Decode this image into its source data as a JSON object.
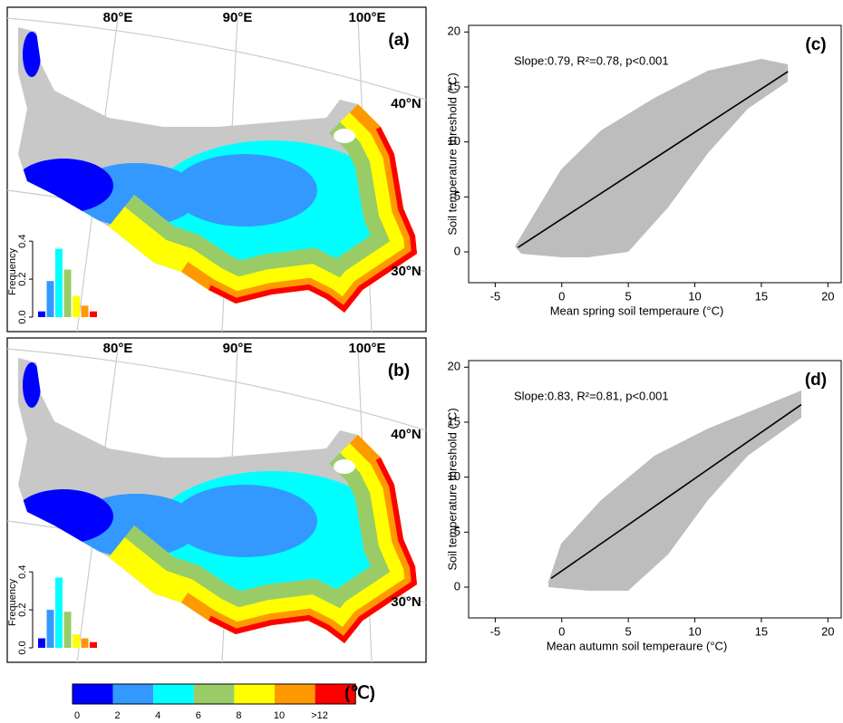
{
  "chart_data": [
    {
      "type": "bar",
      "title": "(a)",
      "y_label": "Frequency",
      "map_labels": [
        "80°E",
        "90°E",
        "100°E",
        "40°N",
        "30°N"
      ],
      "values": [
        0.03,
        0.19,
        0.36,
        0.25,
        0.11,
        0.06,
        0.03
      ],
      "colors": [
        "#0000ff",
        "#3399ff",
        "#00ffff",
        "#99cc66",
        "#ffff00",
        "#ff9900",
        "#ff0000"
      ],
      "ylim": [
        0,
        0.42
      ],
      "yticks": [
        {
          "value": 0,
          "label": "0.0"
        },
        {
          "value": 0.2,
          "label": "0.2"
        },
        {
          "value": 0.4,
          "label": "0.4"
        }
      ]
    },
    {
      "type": "bar",
      "title": "(b)",
      "y_label": "Frequency",
      "map_labels": [
        "80°E",
        "90°E",
        "100°E",
        "40°N",
        "30°N"
      ],
      "values": [
        0.05,
        0.2,
        0.37,
        0.19,
        0.07,
        0.05,
        0.03
      ],
      "colors": [
        "#0000ff",
        "#3399ff",
        "#00ffff",
        "#99cc66",
        "#ffff00",
        "#ff9900",
        "#ff0000"
      ],
      "ylim": [
        0,
        0.42
      ],
      "yticks": [
        {
          "value": 0,
          "label": "0.0"
        },
        {
          "value": 0.2,
          "label": "0.2"
        },
        {
          "value": 0.4,
          "label": "0.4"
        }
      ]
    },
    {
      "type": "line",
      "title": "(c)",
      "annotation": "Slope:0.79, R²=0.78, p<0.001",
      "x_label": "Mean spring soil temperaure (°C)",
      "y_label": "Soil temperature threshold (°C)",
      "x": [
        -3.3,
        17
      ],
      "series": [
        {
          "color": "#000000",
          "values": [
            0.4,
            16.4
          ]
        }
      ],
      "xlim": [
        -7,
        21
      ],
      "ylim": [
        -2.8,
        20.6
      ],
      "xticks": [
        -5,
        0,
        5,
        10,
        15,
        20
      ],
      "yticks": [
        0,
        5,
        10,
        15,
        20
      ]
    },
    {
      "type": "line",
      "title": "(d)",
      "annotation": "Slope:0.83, R²=0.81, p<0.001",
      "x_label": "Mean autumn soil temperaure (°C)",
      "y_label": "Soil temperature threshold (°C)",
      "x": [
        -0.8,
        18
      ],
      "series": [
        {
          "color": "#000000",
          "values": [
            0.8,
            16.6
          ]
        }
      ],
      "xlim": [
        -7,
        21
      ],
      "ylim": [
        -2.8,
        20.6
      ],
      "xticks": [
        -5,
        0,
        5,
        10,
        15,
        20
      ],
      "yticks": [
        0,
        5,
        10,
        15,
        20
      ]
    }
  ],
  "colorbar": {
    "labels": [
      "0",
      "2",
      "4",
      "6",
      "8",
      "10",
      ">12"
    ],
    "colors": [
      "#0000ff",
      "#3399ff",
      "#00ffff",
      "#99cc66",
      "#ffff00",
      "#ff9900",
      "#ff0000"
    ],
    "unit": "(℃)"
  }
}
